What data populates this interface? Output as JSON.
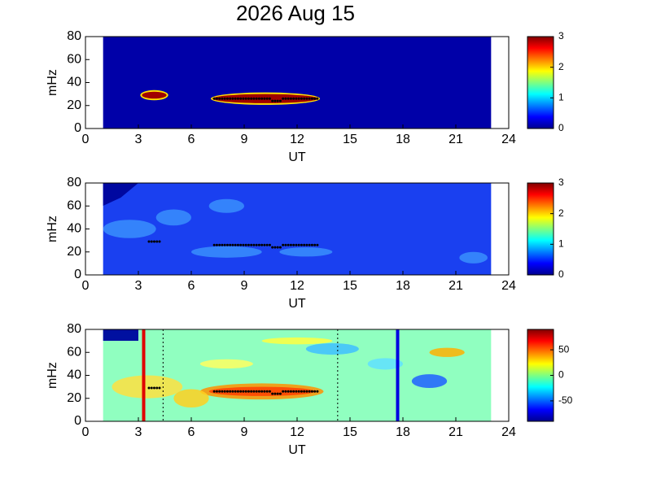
{
  "chart_data": [
    {
      "type": "heatmap",
      "title": "2026 Aug 15",
      "xlabel": "UT",
      "ylabel": "mHz",
      "xlim": [
        0,
        24
      ],
      "xticks": [
        0,
        3,
        6,
        9,
        12,
        15,
        18,
        21,
        24
      ],
      "ylim": [
        0,
        80
      ],
      "yticks": [
        0,
        20,
        40,
        60,
        80
      ],
      "colormap": "jet",
      "clim": [
        0,
        3
      ],
      "cticks": [
        0,
        1,
        2,
        3
      ]
    },
    {
      "type": "heatmap",
      "xlabel": "UT",
      "ylabel": "mHz",
      "xlim": [
        0,
        24
      ],
      "xticks": [
        0,
        3,
        6,
        9,
        12,
        15,
        18,
        21,
        24
      ],
      "ylim": [
        0,
        80
      ],
      "yticks": [
        0,
        20,
        40,
        60,
        80
      ],
      "colormap": "jet",
      "clim": [
        0,
        3
      ],
      "cticks": [
        0,
        1,
        2,
        3
      ]
    },
    {
      "type": "heatmap",
      "xlabel": "UT",
      "ylabel": "mHz",
      "xlim": [
        0,
        24
      ],
      "xticks": [
        0,
        3,
        6,
        9,
        12,
        15,
        18,
        21,
        24
      ],
      "ylim": [
        0,
        80
      ],
      "yticks": [
        0,
        20,
        40,
        60,
        80
      ],
      "colormap": "jet",
      "clim": [
        -90,
        90
      ],
      "cticks": [
        -50,
        0,
        50
      ]
    }
  ]
}
